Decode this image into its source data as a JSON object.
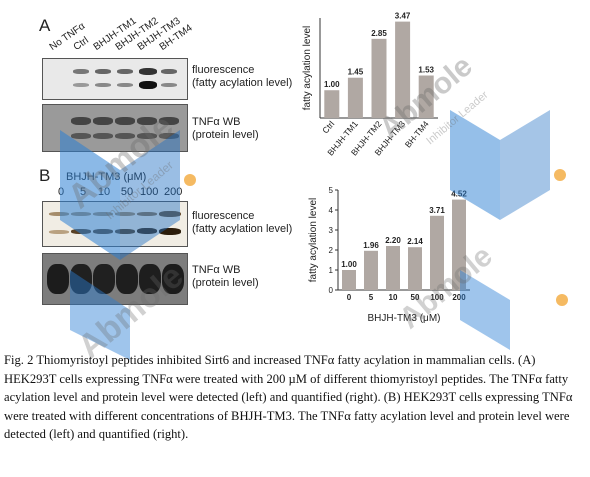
{
  "panel_a": {
    "letter": "A",
    "lanes": [
      "No TNFα",
      "Ctrl",
      "BHJH-TM1",
      "BHJH-TM2",
      "BHJH-TM3",
      "BH-TM4"
    ],
    "blot_top_caption": [
      "fluorescence",
      "(fatty acylation level)"
    ],
    "blot_bottom_caption": [
      "TNFα WB",
      "(protein level)"
    ]
  },
  "panel_b": {
    "letter": "B",
    "treatment_label": "BHJH-TM3 (μM)",
    "concentrations": [
      "0",
      "5",
      "10",
      "50",
      "100",
      "200"
    ],
    "blot_top_caption": [
      "fluorescence",
      "(fatty acylation level)"
    ],
    "blot_bottom_caption": [
      "TNFα WB",
      "(protein level)"
    ]
  },
  "chart_data": [
    {
      "type": "bar",
      "categories": [
        "Ctrl",
        "BHJH-TM1",
        "BHJH-TM2",
        "BHJH-TM3",
        "BH-TM4"
      ],
      "values": [
        1.0,
        1.45,
        2.85,
        3.47,
        1.53
      ],
      "value_labels": [
        "1.00",
        "1.45",
        "2.85",
        "3.47",
        "1.53"
      ],
      "ylabel": "fatty acylation level",
      "xlabel": "",
      "ylim": [
        0,
        3.6
      ],
      "colors": [
        "#b0a8a3",
        "#b0a8a3",
        "#b0a8a3",
        "#b0a8a3",
        "#b0a8a3"
      ]
    },
    {
      "type": "bar",
      "categories": [
        "0",
        "5",
        "10",
        "50",
        "100",
        "200"
      ],
      "values": [
        1.0,
        1.96,
        2.2,
        2.14,
        3.71,
        4.52
      ],
      "value_labels": [
        "1.00",
        "1.96",
        "2.20",
        "2.14",
        "3.71",
        "4.52"
      ],
      "ylabel": "fatty acylation level",
      "xlabel": "BHJH-TM3 (μM)",
      "ylim": [
        0,
        5
      ],
      "yticks": [
        "0",
        "1",
        "2",
        "3",
        "4",
        "5"
      ],
      "colors": [
        "#b0a8a3",
        "#b0a8a3",
        "#b0a8a3",
        "#b0a8a3",
        "#b0a8a3",
        "#b0a8a3"
      ]
    }
  ],
  "caption": "Fig. 2 Thiomyristoyl peptides inhibited Sirt6 and increased TNFα fatty acylation in mammalian cells. (A) HEK293T cells expressing TNFα were treated with 200 µM of different thiomyristoyl peptides. The TNFα fatty acylation level and protein level were detected (left) and quantified (right). (B) HEK293T cells expressing TNFα were treated with different concentrations of BHJH-TM3. The TNFα fatty acylation level and protein level were detected (left) and quantified (right).",
  "watermark": {
    "brand": "Abmole",
    "tagline": "Inhibitor Leader",
    "colors": [
      "#2b7fd4",
      "#f2a93b"
    ]
  }
}
